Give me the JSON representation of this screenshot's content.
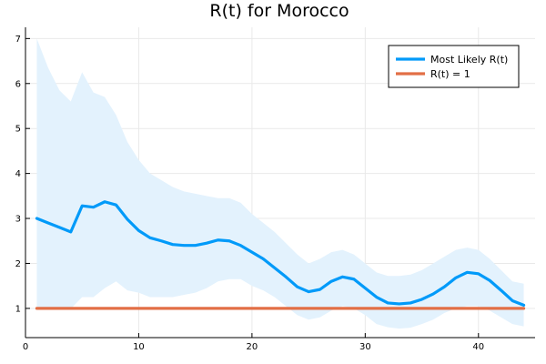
{
  "chart_data": {
    "type": "line",
    "title": "R(t) for Morocco",
    "xlabel": "",
    "ylabel": "",
    "xlim": [
      0,
      45
    ],
    "ylim": [
      0.35,
      7.25
    ],
    "xticks": [
      0,
      10,
      20,
      30,
      40
    ],
    "yticks": [
      1,
      2,
      3,
      4,
      5,
      6,
      7
    ],
    "grid": true,
    "legend_position": "top-right",
    "x": [
      1,
      2,
      3,
      4,
      5,
      6,
      7,
      8,
      9,
      10,
      11,
      12,
      13,
      14,
      15,
      16,
      17,
      18,
      19,
      20,
      21,
      22,
      23,
      24,
      25,
      26,
      27,
      28,
      29,
      30,
      31,
      32,
      33,
      34,
      35,
      36,
      37,
      38,
      39,
      40,
      41,
      42,
      43,
      44
    ],
    "band": {
      "color": "#e3f2fd",
      "upper": [
        7.0,
        6.35,
        5.85,
        5.6,
        6.25,
        5.8,
        5.7,
        5.3,
        4.7,
        4.3,
        4.0,
        3.85,
        3.7,
        3.6,
        3.55,
        3.5,
        3.45,
        3.45,
        3.35,
        3.1,
        2.9,
        2.7,
        2.45,
        2.2,
        2.0,
        2.1,
        2.25,
        2.3,
        2.2,
        2.0,
        1.8,
        1.72,
        1.72,
        1.75,
        1.85,
        2.0,
        2.15,
        2.3,
        2.35,
        2.3,
        2.1,
        1.85,
        1.6,
        1.55
      ],
      "lower": [
        1.0,
        0.99,
        0.99,
        0.99,
        1.25,
        1.25,
        1.45,
        1.6,
        1.4,
        1.35,
        1.25,
        1.25,
        1.25,
        1.3,
        1.35,
        1.45,
        1.6,
        1.65,
        1.65,
        1.5,
        1.4,
        1.25,
        1.05,
        0.85,
        0.75,
        0.8,
        0.95,
        1.05,
        1.0,
        0.85,
        0.65,
        0.58,
        0.55,
        0.57,
        0.65,
        0.75,
        0.9,
        1.0,
        1.05,
        1.05,
        0.95,
        0.8,
        0.65,
        0.6
      ]
    },
    "series": [
      {
        "name": "Most Likely R(t)",
        "color": "#009af9",
        "values": [
          3.0,
          2.9,
          2.8,
          2.7,
          3.28,
          3.25,
          3.37,
          3.3,
          2.98,
          2.73,
          2.57,
          2.5,
          2.42,
          2.4,
          2.4,
          2.45,
          2.52,
          2.5,
          2.4,
          2.25,
          2.1,
          1.9,
          1.7,
          1.48,
          1.37,
          1.42,
          1.6,
          1.7,
          1.65,
          1.45,
          1.25,
          1.12,
          1.1,
          1.12,
          1.2,
          1.32,
          1.48,
          1.68,
          1.8,
          1.77,
          1.62,
          1.4,
          1.17,
          1.07
        ]
      },
      {
        "name": "R(t) = 1",
        "color": "#e26f46",
        "values": [
          1,
          1,
          1,
          1,
          1,
          1,
          1,
          1,
          1,
          1,
          1,
          1,
          1,
          1,
          1,
          1,
          1,
          1,
          1,
          1,
          1,
          1,
          1,
          1,
          1,
          1,
          1,
          1,
          1,
          1,
          1,
          1,
          1,
          1,
          1,
          1,
          1,
          1,
          1,
          1,
          1,
          1,
          1,
          1
        ]
      }
    ]
  }
}
